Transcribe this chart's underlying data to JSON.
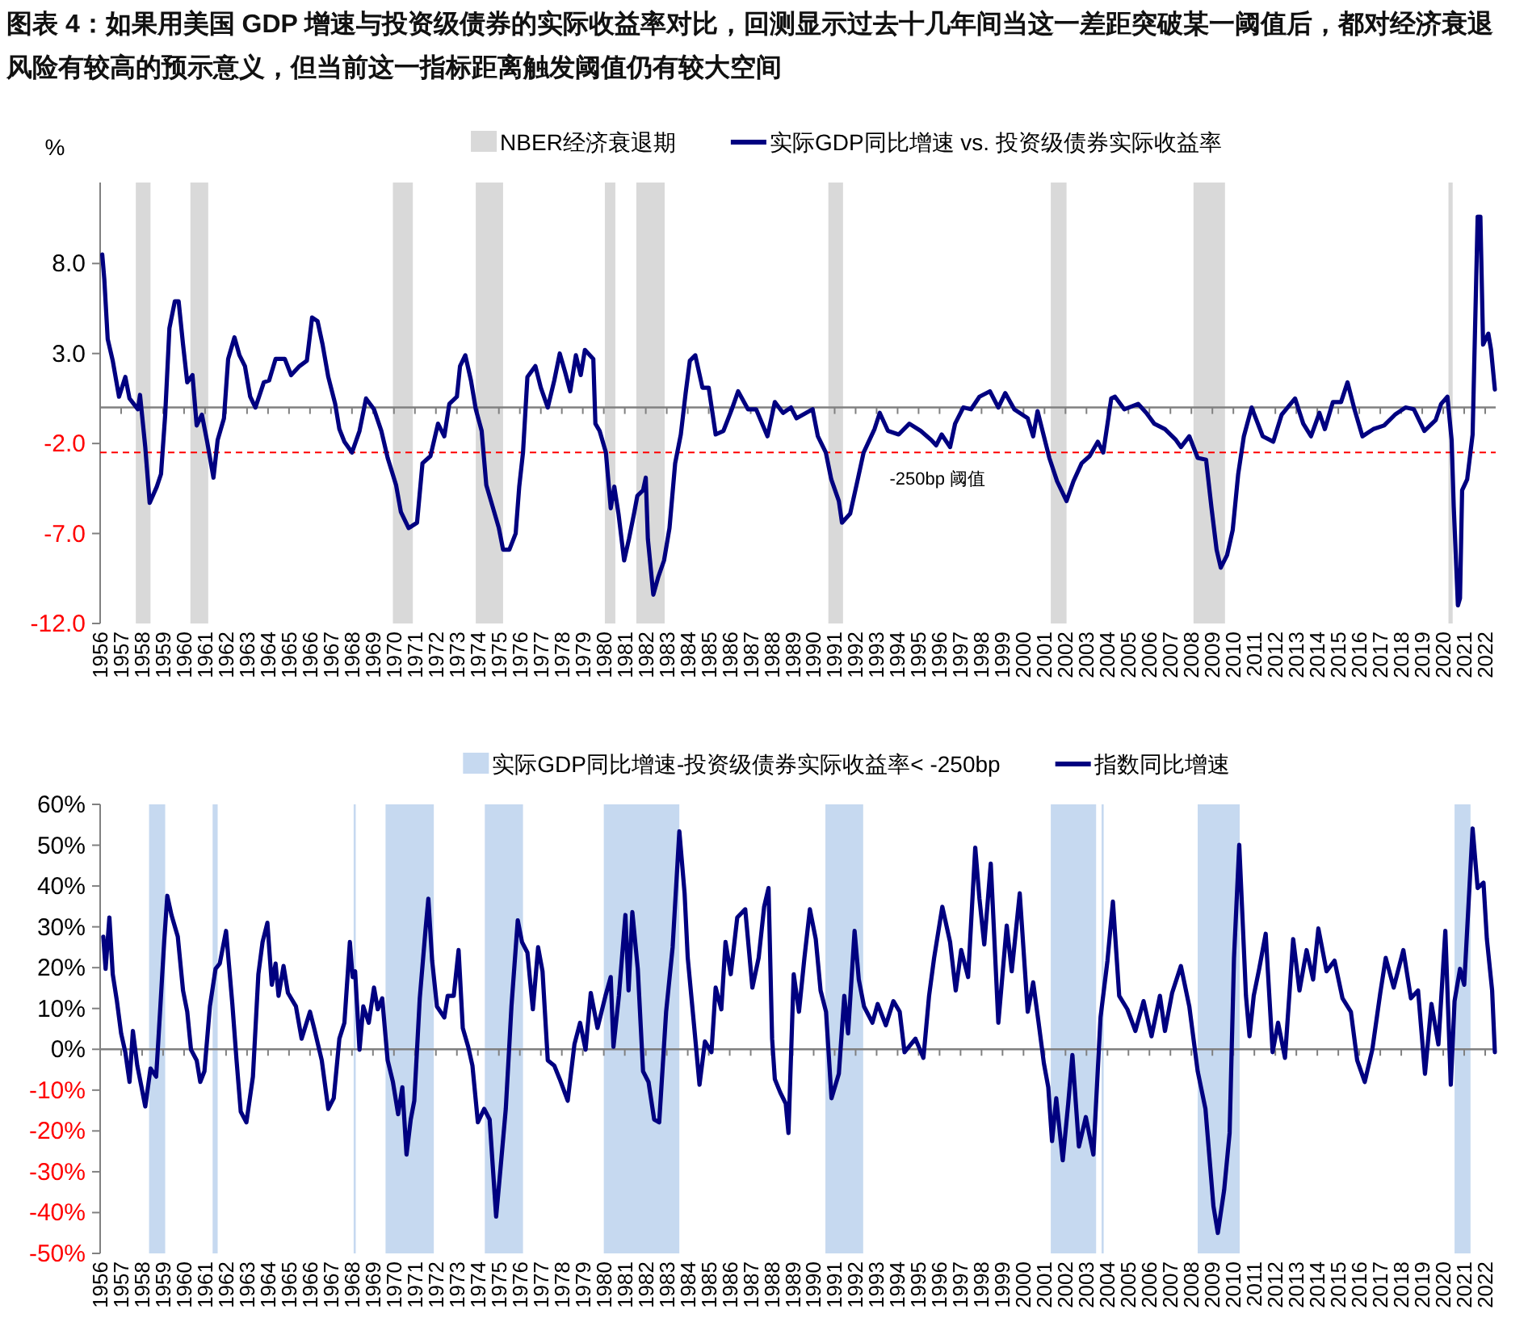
{
  "chart_data": [
    {
      "type": "line",
      "title": "图表 4：如果用美国 GDP 增速与投资级债券的实际收益率对比，回测显示过去十几年间当这一差距突破某一阈值后，都对经济衰退风险有较高的预示意义，但当前这一指标距离触发阈值仍有较大空间",
      "ylabel": "%",
      "legend": "top",
      "xlim": [
        1956,
        2022.5
      ],
      "ylim": [
        -12,
        12.5
      ],
      "xticks": [
        1956,
        1957,
        1958,
        1959,
        1960,
        1961,
        1962,
        1963,
        1964,
        1965,
        1966,
        1967,
        1968,
        1969,
        1970,
        1971,
        1972,
        1973,
        1974,
        1975,
        1976,
        1977,
        1978,
        1979,
        1980,
        1981,
        1982,
        1983,
        1984,
        1985,
        1986,
        1987,
        1988,
        1989,
        1990,
        1991,
        1992,
        1993,
        1994,
        1995,
        1996,
        1997,
        1998,
        1999,
        2000,
        2001,
        2002,
        2003,
        2004,
        2005,
        2006,
        2007,
        2008,
        2009,
        2010,
        2011,
        2012,
        2013,
        2014,
        2015,
        2016,
        2017,
        2018,
        2019,
        2020,
        2021,
        2022
      ],
      "yticks": [
        {
          "value": -12,
          "label": "-12.0"
        },
        {
          "value": -7,
          "label": "-7.0"
        },
        {
          "value": -2,
          "label": "-2.0"
        },
        {
          "value": 3,
          "label": "3.0"
        },
        {
          "value": 8,
          "label": "8.0"
        }
      ],
      "bands": [
        {
          "axis": "x",
          "from": 1957.7,
          "to": 1958.4,
          "color": "#d9d9d9",
          "label": "NBER经济衰退期"
        },
        {
          "axis": "x",
          "from": 1960.3,
          "to": 1961.15,
          "color": "#d9d9d9"
        },
        {
          "axis": "x",
          "from": 1969.95,
          "to": 1970.9,
          "color": "#d9d9d9"
        },
        {
          "axis": "x",
          "from": 1973.9,
          "to": 1975.2,
          "color": "#d9d9d9"
        },
        {
          "axis": "x",
          "from": 1980.05,
          "to": 1980.55,
          "color": "#d9d9d9"
        },
        {
          "axis": "x",
          "from": 1981.55,
          "to": 1982.9,
          "color": "#d9d9d9"
        },
        {
          "axis": "x",
          "from": 1990.7,
          "to": 1991.4,
          "color": "#d9d9d9"
        },
        {
          "axis": "x",
          "from": 2001.3,
          "to": 2002.05,
          "color": "#d9d9d9"
        },
        {
          "axis": "x",
          "from": 2008.1,
          "to": 2009.6,
          "color": "#d9d9d9"
        },
        {
          "axis": "x",
          "from": 2020.25,
          "to": 2020.45,
          "color": "#d9d9d9"
        }
      ],
      "ref_lines": [
        {
          "axis": "y",
          "value": -2.5,
          "label": "-250bp 阈值",
          "color": "#ff0000",
          "line_style": "dashed"
        }
      ],
      "x": [
        1956.1,
        1956.2,
        1956.36,
        1956.6,
        1956.9,
        1957.2,
        1957.4,
        1957.8,
        1957.9,
        1958.15,
        1958.36,
        1958.7,
        1958.9,
        1959.1,
        1959.3,
        1959.56,
        1959.74,
        1959.95,
        1960.15,
        1960.4,
        1960.6,
        1960.85,
        1961.1,
        1961.4,
        1961.6,
        1961.9,
        1962.1,
        1962.4,
        1962.64,
        1962.9,
        1963.15,
        1963.4,
        1963.8,
        1964.05,
        1964.36,
        1964.8,
        1965.1,
        1965.5,
        1965.85,
        1966.1,
        1966.36,
        1966.6,
        1966.87,
        1967.2,
        1967.4,
        1967.64,
        1968.0,
        1968.36,
        1968.67,
        1969.05,
        1969.4,
        1969.7,
        1970.1,
        1970.33,
        1970.7,
        1971.1,
        1971.36,
        1971.74,
        1972.1,
        1972.4,
        1972.64,
        1973.0,
        1973.15,
        1973.4,
        1973.67,
        1973.9,
        1974.18,
        1974.4,
        1974.7,
        1975.0,
        1975.2,
        1975.5,
        1975.8,
        1975.97,
        1976.15,
        1976.36,
        1976.74,
        1977.0,
        1977.33,
        1977.64,
        1977.9,
        1978.15,
        1978.4,
        1978.67,
        1978.9,
        1979.1,
        1979.5,
        1979.6,
        1979.8,
        1980.1,
        1980.33,
        1980.5,
        1980.7,
        1980.97,
        1981.2,
        1981.44,
        1981.6,
        1981.87,
        1982.0,
        1982.1,
        1982.36,
        1982.6,
        1982.87,
        1983.13,
        1983.4,
        1983.67,
        1983.9,
        1984.1,
        1984.36,
        1984.7,
        1985.0,
        1985.33,
        1985.7,
        1986.1,
        1986.4,
        1986.87,
        1987.26,
        1987.8,
        1988.15,
        1988.54,
        1988.92,
        1989.18,
        1989.95,
        1990.2,
        1990.58,
        1990.84,
        1991.2,
        1991.35,
        1991.74,
        1992.1,
        1992.38,
        1992.9,
        1993.15,
        1993.54,
        1994.05,
        1994.56,
        1995.1,
        1995.6,
        1995.84,
        1996.1,
        1996.5,
        1996.74,
        1997.13,
        1997.5,
        1997.9,
        1998.4,
        1998.8,
        1999.13,
        1999.56,
        2000.2,
        2000.46,
        2000.67,
        2000.97,
        2001.23,
        2001.6,
        2002.05,
        2002.38,
        2002.77,
        2003.15,
        2003.54,
        2003.8,
        2004.18,
        2004.36,
        2004.8,
        2005.46,
        2005.85,
        2006.23,
        2006.74,
        2007.26,
        2007.5,
        2007.9,
        2008.3,
        2008.7,
        2008.95,
        2009.2,
        2009.4,
        2009.7,
        2009.97,
        2010.23,
        2010.5,
        2010.87,
        2011.4,
        2011.9,
        2012.3,
        2012.94,
        2013.33,
        2013.7,
        2014.1,
        2014.36,
        2014.74,
        2015.13,
        2015.44,
        2015.77,
        2016.15,
        2016.67,
        2017.18,
        2017.7,
        2018.2,
        2018.6,
        2019.1,
        2019.64,
        2019.9,
        2020.2,
        2020.4,
        2020.5,
        2020.7,
        2020.8,
        2020.9,
        2021.14,
        2021.4,
        2021.64,
        2021.77,
        2021.9,
        2022.15,
        2022.28,
        2022.46
      ],
      "series": [
        {
          "name": "实际GDP同比增速 vs. 投资级债券实际收益率",
          "color": "#000080",
          "values": [
            8.5,
            7.1,
            3.8,
            2.6,
            0.6,
            1.7,
            0.5,
            -0.1,
            0.7,
            -2.2,
            -5.3,
            -4.4,
            -3.7,
            -0.4,
            4.4,
            5.9,
            5.9,
            3.5,
            1.4,
            1.8,
            -1.0,
            -0.4,
            -1.9,
            -3.9,
            -1.8,
            -0.6,
            2.7,
            3.9,
            2.9,
            2.3,
            0.6,
            0.0,
            1.4,
            1.5,
            2.7,
            2.7,
            1.8,
            2.3,
            2.6,
            5.0,
            4.8,
            3.5,
            1.7,
            0.2,
            -1.2,
            -1.9,
            -2.5,
            -1.3,
            0.5,
            -0.1,
            -1.3,
            -2.8,
            -4.3,
            -5.8,
            -6.7,
            -6.4,
            -3.1,
            -2.7,
            -0.9,
            -1.6,
            0.2,
            0.6,
            2.3,
            2.9,
            1.5,
            -0.1,
            -1.3,
            -4.3,
            -5.5,
            -6.7,
            -7.9,
            -7.9,
            -7.0,
            -4.4,
            -2.5,
            1.7,
            2.3,
            1.1,
            0.0,
            1.5,
            3.0,
            2.0,
            0.9,
            2.9,
            1.8,
            3.2,
            2.7,
            -0.9,
            -1.3,
            -2.5,
            -5.6,
            -4.4,
            -5.9,
            -8.5,
            -7.3,
            -5.9,
            -4.9,
            -4.6,
            -3.9,
            -7.3,
            -10.4,
            -9.4,
            -8.5,
            -6.7,
            -3.1,
            -1.5,
            0.8,
            2.6,
            2.9,
            1.1,
            1.1,
            -1.5,
            -1.3,
            -0.1,
            0.9,
            -0.1,
            -0.1,
            -1.6,
            0.3,
            -0.3,
            0.0,
            -0.6,
            -0.1,
            -1.6,
            -2.5,
            -4.0,
            -5.2,
            -6.4,
            -5.9,
            -4.0,
            -2.5,
            -1.2,
            -0.3,
            -1.3,
            -1.5,
            -0.9,
            -1.3,
            -1.8,
            -2.1,
            -1.5,
            -2.2,
            -0.9,
            0.0,
            -0.1,
            0.6,
            0.9,
            0.0,
            0.8,
            -0.1,
            -0.6,
            -1.6,
            -0.2,
            -1.6,
            -2.8,
            -4.1,
            -5.2,
            -4.1,
            -3.1,
            -2.7,
            -1.9,
            -2.5,
            0.5,
            0.6,
            -0.1,
            0.2,
            -0.3,
            -0.9,
            -1.2,
            -1.8,
            -2.2,
            -1.6,
            -2.8,
            -2.9,
            -5.5,
            -7.9,
            -8.9,
            -8.2,
            -6.8,
            -3.7,
            -1.6,
            0.0,
            -1.6,
            -1.9,
            -0.4,
            0.5,
            -0.9,
            -1.6,
            -0.3,
            -1.2,
            0.3,
            0.3,
            1.4,
            -0.1,
            -1.6,
            -1.2,
            -1.0,
            -0.4,
            0.0,
            -0.1,
            -1.3,
            -0.7,
            0.2,
            0.6,
            -1.8,
            -5.5,
            -11.0,
            -10.6,
            -4.6,
            -4.0,
            -1.5,
            10.6,
            10.6,
            3.5,
            4.1,
            3.2,
            1.0
          ]
        }
      ]
    },
    {
      "type": "line",
      "legend": "top",
      "xlim": [
        1956,
        2022.5
      ],
      "ylim": [
        -50,
        60
      ],
      "xticks": [
        1956,
        1957,
        1958,
        1959,
        1960,
        1961,
        1962,
        1963,
        1964,
        1965,
        1966,
        1967,
        1968,
        1969,
        1970,
        1971,
        1972,
        1973,
        1974,
        1975,
        1976,
        1977,
        1978,
        1979,
        1980,
        1981,
        1982,
        1983,
        1984,
        1985,
        1986,
        1987,
        1988,
        1989,
        1990,
        1991,
        1992,
        1993,
        1994,
        1995,
        1996,
        1997,
        1998,
        1999,
        2000,
        2001,
        2002,
        2003,
        2004,
        2005,
        2006,
        2007,
        2008,
        2009,
        2010,
        2011,
        2012,
        2013,
        2014,
        2015,
        2016,
        2017,
        2018,
        2019,
        2020,
        2021,
        2022
      ],
      "yticks": [
        {
          "value": -50,
          "label": "-50%"
        },
        {
          "value": -40,
          "label": "-40%"
        },
        {
          "value": -30,
          "label": "-30%"
        },
        {
          "value": -20,
          "label": "-20%"
        },
        {
          "value": -10,
          "label": "-10%"
        },
        {
          "value": 0,
          "label": "0%"
        },
        {
          "value": 10,
          "label": "10%"
        },
        {
          "value": 20,
          "label": "20%"
        },
        {
          "value": 30,
          "label": "30%"
        },
        {
          "value": 40,
          "label": "40%"
        },
        {
          "value": 50,
          "label": "50%"
        },
        {
          "value": 60,
          "label": "60%"
        }
      ],
      "bands": [
        {
          "axis": "x",
          "from": 1958.33,
          "to": 1959.1,
          "color": "#c6d9f0",
          "label": "实际GDP同比增速-投资级债券实际收益率< -250bp"
        },
        {
          "axis": "x",
          "from": 1961.36,
          "to": 1961.6,
          "color": "#c6d9f0"
        },
        {
          "axis": "x",
          "from": 1968.08,
          "to": 1968.18,
          "color": "#c6d9f0"
        },
        {
          "axis": "x",
          "from": 1969.6,
          "to": 1971.9,
          "color": "#c6d9f0"
        },
        {
          "axis": "x",
          "from": 1974.33,
          "to": 1976.15,
          "color": "#c6d9f0"
        },
        {
          "axis": "x",
          "from": 1980.0,
          "to": 1983.6,
          "color": "#c6d9f0"
        },
        {
          "axis": "x",
          "from": 1990.56,
          "to": 1992.36,
          "color": "#c6d9f0"
        },
        {
          "axis": "x",
          "from": 2001.3,
          "to": 2003.46,
          "color": "#c6d9f0"
        },
        {
          "axis": "x",
          "from": 2003.72,
          "to": 2003.82,
          "color": "#c6d9f0"
        },
        {
          "axis": "x",
          "from": 2008.3,
          "to": 2010.3,
          "color": "#c6d9f0"
        },
        {
          "axis": "x",
          "from": 2020.54,
          "to": 2021.3,
          "color": "#c6d9f0"
        }
      ],
      "x": [
        1956.15,
        1956.26,
        1956.44,
        1956.6,
        1956.8,
        1957.0,
        1957.2,
        1957.4,
        1957.56,
        1957.77,
        1957.95,
        1958.15,
        1958.4,
        1958.67,
        1958.87,
        1959.05,
        1959.2,
        1959.4,
        1959.7,
        1959.95,
        1960.15,
        1960.33,
        1960.6,
        1960.77,
        1960.97,
        1961.23,
        1961.5,
        1961.7,
        1962.0,
        1962.3,
        1962.5,
        1962.7,
        1962.97,
        1963.28,
        1963.54,
        1963.74,
        1963.97,
        1964.18,
        1964.36,
        1964.5,
        1964.74,
        1964.95,
        1965.33,
        1965.6,
        1966.0,
        1966.23,
        1966.56,
        1966.87,
        1967.13,
        1967.4,
        1967.64,
        1967.9,
        1968.03,
        1968.15,
        1968.36,
        1968.54,
        1968.8,
        1969.05,
        1969.23,
        1969.44,
        1969.7,
        1969.95,
        1970.2,
        1970.4,
        1970.6,
        1970.8,
        1970.97,
        1971.23,
        1971.5,
        1971.64,
        1971.82,
        1972.05,
        1972.4,
        1972.56,
        1972.85,
        1973.08,
        1973.28,
        1973.54,
        1973.74,
        1974.0,
        1974.3,
        1974.56,
        1974.87,
        1975.08,
        1975.33,
        1975.6,
        1975.9,
        1976.1,
        1976.36,
        1976.62,
        1976.87,
        1977.08,
        1977.33,
        1977.64,
        1977.9,
        1978.28,
        1978.6,
        1978.87,
        1979.13,
        1979.38,
        1979.7,
        1980.08,
        1980.33,
        1980.46,
        1980.72,
        1981.03,
        1981.18,
        1981.36,
        1981.62,
        1981.87,
        1982.13,
        1982.4,
        1982.64,
        1982.97,
        1983.28,
        1983.6,
        1983.85,
        1984.0,
        1984.3,
        1984.56,
        1984.82,
        1985.13,
        1985.33,
        1985.6,
        1985.8,
        1986.05,
        1986.36,
        1986.74,
        1987.08,
        1987.38,
        1987.64,
        1987.85,
        1988.02,
        1988.15,
        1988.41,
        1988.67,
        1988.8,
        1989.05,
        1989.3,
        1989.56,
        1989.82,
        1990.1,
        1990.33,
        1990.59,
        1990.85,
        1991.2,
        1991.46,
        1991.64,
        1991.95,
        1992.15,
        1992.4,
        1992.8,
        1993.05,
        1993.44,
        1993.8,
        1994.1,
        1994.33,
        1994.85,
        1995.23,
        1995.5,
        1995.74,
        1996.13,
        1996.5,
        1996.77,
        1997.03,
        1997.36,
        1997.7,
        1997.9,
        1998.13,
        1998.44,
        1998.8,
        1999.2,
        1999.44,
        1999.82,
        2000.2,
        2000.46,
        2000.72,
        2000.97,
        2001.18,
        2001.36,
        2001.56,
        2001.87,
        2002.13,
        2002.33,
        2002.64,
        2002.97,
        2003.33,
        2003.67,
        2004.0,
        2004.26,
        2004.56,
        2004.95,
        2005.33,
        2005.72,
        2006.1,
        2006.5,
        2006.74,
        2007.08,
        2007.5,
        2007.9,
        2008.3,
        2008.67,
        2009.05,
        2009.26,
        2009.56,
        2009.82,
        2010.03,
        2010.28,
        2010.6,
        2010.77,
        2010.97,
        2011.23,
        2011.54,
        2011.87,
        2012.13,
        2012.46,
        2012.85,
        2013.15,
        2013.49,
        2013.8,
        2014.05,
        2014.44,
        2014.82,
        2015.2,
        2015.6,
        2015.9,
        2016.26,
        2016.62,
        2017.0,
        2017.26,
        2017.64,
        2018.1,
        2018.46,
        2018.8,
        2019.13,
        2019.44,
        2019.77,
        2020.1,
        2020.36,
        2020.54,
        2020.8,
        2021.0,
        2021.4,
        2021.64,
        2021.92,
        2022.08,
        2022.33,
        2022.46
      ],
      "series": [
        {
          "name": "指数同比增速",
          "color": "#000080",
          "values": [
            27.6,
            19.7,
            32.3,
            18.4,
            11.8,
            3.9,
            -0.7,
            -8.0,
            4.5,
            -4.0,
            -8.7,
            -14.0,
            -4.7,
            -6.7,
            10.5,
            26.3,
            37.6,
            32.9,
            27.6,
            14.4,
            9.2,
            -0.1,
            -2.7,
            -8.0,
            -5.4,
            10.5,
            19.7,
            21.0,
            29.0,
            11.1,
            -2.7,
            -15.3,
            -17.9,
            -6.7,
            18.4,
            26.3,
            31.0,
            15.8,
            21.0,
            13.1,
            20.4,
            13.8,
            10.5,
            2.6,
            9.2,
            4.5,
            -2.7,
            -14.6,
            -12.0,
            2.6,
            6.5,
            26.3,
            17.7,
            19.1,
            -0.1,
            10.5,
            6.5,
            15.1,
            9.8,
            12.5,
            -2.7,
            -8.0,
            -15.9,
            -9.3,
            -25.8,
            -17.2,
            -12.6,
            12.5,
            29.0,
            36.9,
            21.7,
            10.5,
            7.8,
            13.1,
            13.1,
            24.3,
            5.2,
            0.6,
            -4.0,
            -17.9,
            -14.6,
            -17.2,
            -41.0,
            -29.1,
            -14.6,
            10.5,
            31.6,
            26.3,
            23.7,
            9.8,
            25.0,
            19.1,
            -2.7,
            -4.0,
            -7.3,
            -12.6,
            1.2,
            6.5,
            -0.1,
            13.8,
            5.2,
            13.1,
            17.7,
            0.6,
            13.1,
            32.9,
            14.4,
            33.6,
            19.7,
            -5.4,
            -8.0,
            -17.2,
            -17.9,
            9.2,
            25.0,
            53.4,
            38.2,
            22.4,
            5.9,
            -8.7,
            1.9,
            -0.7,
            15.1,
            9.8,
            26.3,
            18.4,
            32.3,
            34.3,
            15.1,
            22.4,
            34.9,
            39.5,
            2.6,
            -7.3,
            -10.6,
            -13.3,
            -20.5,
            18.4,
            9.2,
            22.4,
            34.3,
            27.0,
            14.4,
            9.2,
            -12.0,
            -6.0,
            13.1,
            3.9,
            29.0,
            17.1,
            10.5,
            6.5,
            11.1,
            5.9,
            11.8,
            9.2,
            -0.7,
            2.6,
            -2.1,
            13.1,
            22.4,
            34.9,
            26.3,
            14.4,
            24.3,
            17.7,
            49.4,
            36.9,
            25.7,
            45.5,
            6.5,
            30.3,
            19.1,
            38.2,
            9.2,
            16.4,
            6.5,
            -3.4,
            -9.3,
            -22.5,
            -12.0,
            -27.2,
            -13.3,
            -1.4,
            -23.8,
            -16.6,
            -25.8,
            7.8,
            21.7,
            36.2,
            13.1,
            9.8,
            4.5,
            11.8,
            3.2,
            13.1,
            4.5,
            13.8,
            20.4,
            10.5,
            -5.4,
            -14.6,
            -38.4,
            -45.0,
            -34.5,
            -20.5,
            22.4,
            50.1,
            13.1,
            3.2,
            13.1,
            19.7,
            28.3,
            -0.7,
            6.5,
            -2.1,
            27.0,
            14.4,
            24.3,
            17.1,
            29.6,
            19.1,
            21.7,
            12.5,
            9.2,
            -2.7,
            -8.0,
            -0.1,
            13.8,
            22.4,
            15.1,
            24.3,
            12.5,
            14.4,
            -6.0,
            11.1,
            1.2,
            29.0,
            -8.7,
            11.8,
            19.7,
            15.8,
            54.1,
            39.5,
            40.8,
            27.0,
            14.4,
            -0.7
          ]
        }
      ]
    }
  ]
}
